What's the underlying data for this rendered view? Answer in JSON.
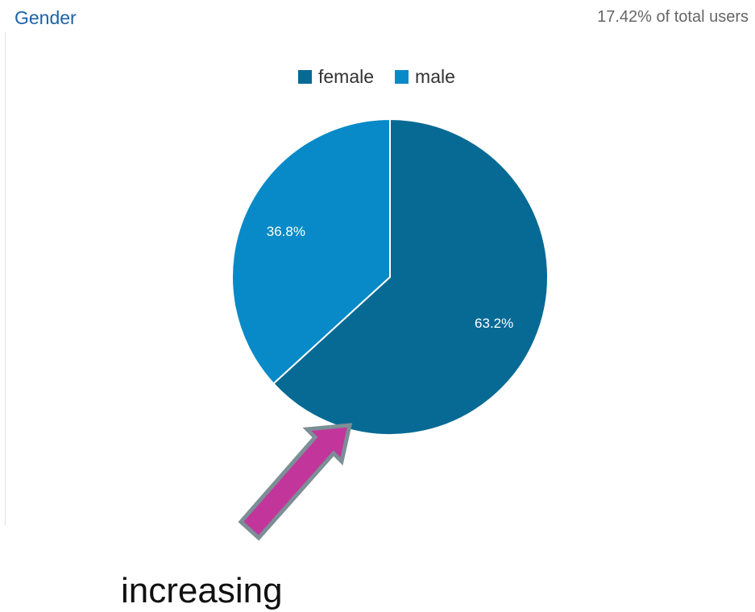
{
  "header": {
    "title": "Gender",
    "subtitle": "17.42% of total users"
  },
  "legend": {
    "position": "top-center",
    "items": [
      {
        "label": "female",
        "color": "#076a94"
      },
      {
        "label": "male",
        "color": "#078ac7"
      }
    ]
  },
  "chart_data": {
    "type": "pie",
    "title": "Gender",
    "categories": [
      "female",
      "male"
    ],
    "values": [
      63.2,
      36.8
    ],
    "data_labels": [
      "63.2%",
      "36.8%"
    ],
    "colors": [
      "#076a94",
      "#078ac7"
    ],
    "legend": "top-center",
    "start_angle": "12 o'clock",
    "direction": "clockwise"
  },
  "annotation": {
    "arrow_icon": "up-right-arrow-icon",
    "arrow_color": "#c2369c",
    "text": "increasing"
  }
}
